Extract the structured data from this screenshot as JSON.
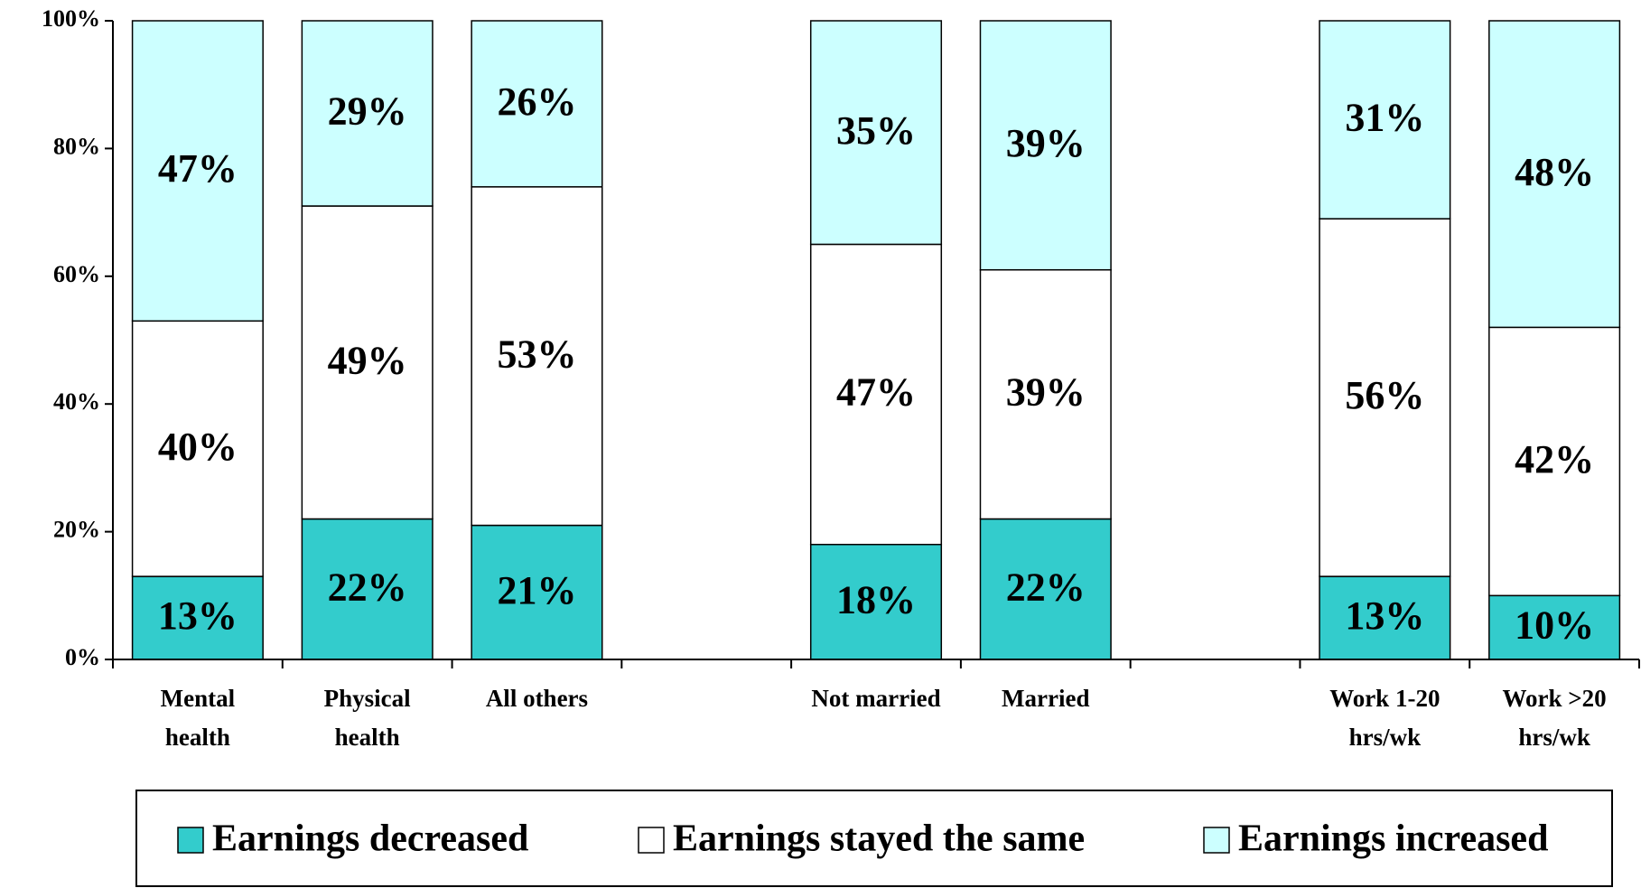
{
  "chart_data": {
    "type": "stacked_bar_100",
    "categories": [
      "Mental health",
      "Physical health",
      "All others",
      null,
      "Not married",
      "Married",
      null,
      "Work 1-20 hrs/wk",
      "Work >20 hrs/wk"
    ],
    "series": [
      {
        "name": "Earnings decreased",
        "color": "#33CCCC",
        "values": [
          13,
          22,
          21,
          null,
          18,
          22,
          null,
          13,
          10
        ],
        "value_labels": [
          "13%",
          "22%",
          "21%",
          null,
          "18%",
          "22%",
          null,
          "13%",
          "10%"
        ]
      },
      {
        "name": "Earnings stayed the same",
        "color": "#FFFFFF",
        "values": [
          40,
          49,
          53,
          null,
          47,
          39,
          null,
          56,
          42
        ],
        "value_labels": [
          "40%",
          "49%",
          "53%",
          null,
          "47%",
          "39%",
          null,
          "56%",
          "42%"
        ]
      },
      {
        "name": "Earnings increased",
        "color": "#CCFFFF",
        "values": [
          47,
          29,
          26,
          null,
          35,
          39,
          null,
          31,
          48
        ],
        "value_labels": [
          "47%",
          "29%",
          "26%",
          null,
          "35%",
          "39%",
          null,
          "31%",
          "48%"
        ]
      }
    ],
    "ylim": [
      0,
      100
    ],
    "yticks": [
      {
        "value": 0,
        "label": "0%"
      },
      {
        "value": 20,
        "label": "20%"
      },
      {
        "value": 40,
        "label": "40%"
      },
      {
        "value": 60,
        "label": "60%"
      },
      {
        "value": 80,
        "label": "80%"
      },
      {
        "value": 100,
        "label": "100%"
      }
    ],
    "legend": "bottom"
  }
}
